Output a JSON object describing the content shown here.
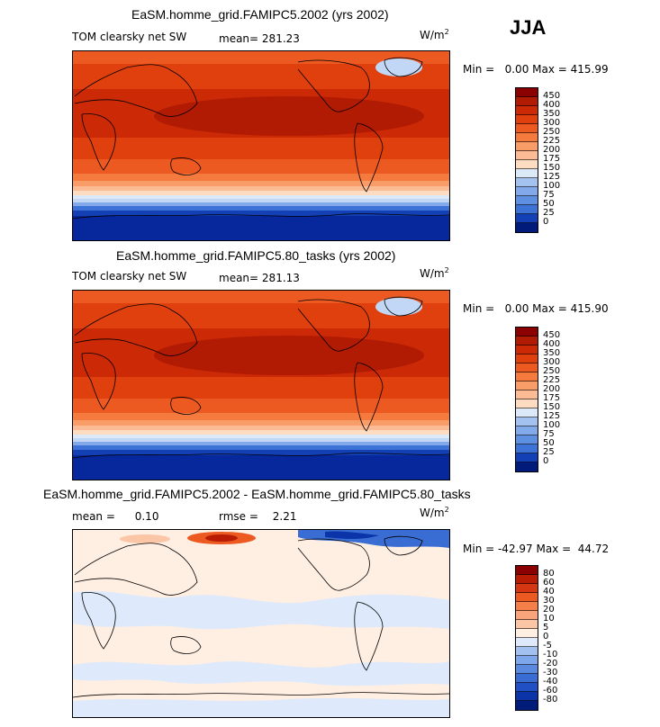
{
  "season": "JJA",
  "colors": {
    "positive": [
      "#8b0000",
      "#b11a03",
      "#cc2a06",
      "#e0400e",
      "#ec5a22",
      "#f47a3e",
      "#f89c68",
      "#fbbc95",
      "#fddcc2",
      "#fff0e4"
    ],
    "negative": [
      "#fff0e4",
      "#dce9f8",
      "#c1d7f5",
      "#a3c2f0",
      "#82aaea",
      "#5e8fe1",
      "#3d72d6",
      "#2558cb",
      "#1440b6",
      "#06289c",
      "#001b7a"
    ],
    "diff": [
      "#8b0000",
      "#b81c04",
      "#d63612",
      "#ec5a22",
      "#f47f48",
      "#f9a57b",
      "#fbc6a6",
      "#fde0ce",
      "#ffeee2",
      "#deeafb",
      "#c3d8f6",
      "#a2c1f0",
      "#7ea6ea",
      "#5a89e0",
      "#3a6dd4",
      "#2050c4",
      "#0a34a7",
      "#001b7a"
    ]
  },
  "panels": [
    {
      "title": "EaSM.homme_grid.FAMIPC5.2002 (yrs 2002)",
      "left_label": "TOM clearsky net SW",
      "mean_label": "mean=",
      "mean_value": "281.23",
      "unit": "W/m",
      "unit_sup": "2",
      "minmax": "Min =   0.00 Max = 415.99",
      "colorbar_labels": [
        "450",
        "400",
        "350",
        "300",
        "250",
        "225",
        "200",
        "175",
        "150",
        "125",
        "100",
        "75",
        "50",
        "25",
        "0"
      ]
    },
    {
      "title": "EaSM.homme_grid.FAMIPC5.80_tasks (yrs 2002)",
      "left_label": "TOM clearsky net SW",
      "mean_label": "mean=",
      "mean_value": "281.13",
      "unit": "W/m",
      "unit_sup": "2",
      "minmax": "Min =   0.00 Max = 415.90",
      "colorbar_labels": [
        "450",
        "400",
        "350",
        "300",
        "250",
        "225",
        "200",
        "175",
        "150",
        "125",
        "100",
        "75",
        "50",
        "25",
        "0"
      ]
    },
    {
      "title": "EaSM.homme_grid.FAMIPC5.2002 - EaSM.homme_grid.FAMIPC5.80_tasks",
      "left_label": "mean =",
      "mean_label": "rmse =",
      "mean_value": "0.10",
      "rmse_value": "2.21",
      "unit": "W/m",
      "unit_sup": "2",
      "minmax": "Min = -42.97 Max =  44.72",
      "colorbar_labels": [
        "80",
        "60",
        "40",
        "30",
        "20",
        "10",
        "5",
        "0",
        "-5",
        "-10",
        "-20",
        "-30",
        "-40",
        "-60",
        "-80"
      ]
    }
  ],
  "chart_data": [
    {
      "type": "heatmap",
      "title": "EaSM.homme_grid.FAMIPC5.2002 (yrs 2002)",
      "variable": "TOM clearsky net SW",
      "units": "W/m2",
      "mean": 281.23,
      "min": 0.0,
      "max": 415.99,
      "contour_levels": [
        0,
        25,
        50,
        75,
        100,
        125,
        150,
        175,
        200,
        225,
        250,
        300,
        350,
        400,
        450
      ],
      "zonal_bands": [
        {
          "lat": 75,
          "value": 300
        },
        {
          "lat": 60,
          "value": 355
        },
        {
          "lat": 45,
          "value": 380
        },
        {
          "lat": 30,
          "value": 400
        },
        {
          "lat": 15,
          "value": 395
        },
        {
          "lat": 0,
          "value": 370
        },
        {
          "lat": -15,
          "value": 330
        },
        {
          "lat": -30,
          "value": 270
        },
        {
          "lat": -45,
          "value": 180
        },
        {
          "lat": -55,
          "value": 120
        },
        {
          "lat": -65,
          "value": 50
        },
        {
          "lat": -80,
          "value": 0
        }
      ]
    },
    {
      "type": "heatmap",
      "title": "EaSM.homme_grid.FAMIPC5.80_tasks (yrs 2002)",
      "variable": "TOM clearsky net SW",
      "units": "W/m2",
      "mean": 281.13,
      "min": 0.0,
      "max": 415.9,
      "contour_levels": [
        0,
        25,
        50,
        75,
        100,
        125,
        150,
        175,
        200,
        225,
        250,
        300,
        350,
        400,
        450
      ],
      "zonal_bands": [
        {
          "lat": 75,
          "value": 300
        },
        {
          "lat": 60,
          "value": 355
        },
        {
          "lat": 45,
          "value": 380
        },
        {
          "lat": 30,
          "value": 400
        },
        {
          "lat": 15,
          "value": 395
        },
        {
          "lat": 0,
          "value": 370
        },
        {
          "lat": -15,
          "value": 330
        },
        {
          "lat": -30,
          "value": 270
        },
        {
          "lat": -45,
          "value": 180
        },
        {
          "lat": -55,
          "value": 120
        },
        {
          "lat": -65,
          "value": 50
        },
        {
          "lat": -80,
          "value": 0
        }
      ]
    },
    {
      "type": "heatmap",
      "title": "EaSM.homme_grid.FAMIPC5.2002 - EaSM.homme_grid.FAMIPC5.80_tasks",
      "units": "W/m2",
      "mean": 0.1,
      "rmse": 2.21,
      "min": -42.97,
      "max": 44.72,
      "contour_levels": [
        -80,
        -60,
        -40,
        -30,
        -20,
        -10,
        -5,
        0,
        5,
        10,
        20,
        30,
        40,
        60,
        80
      ]
    }
  ]
}
